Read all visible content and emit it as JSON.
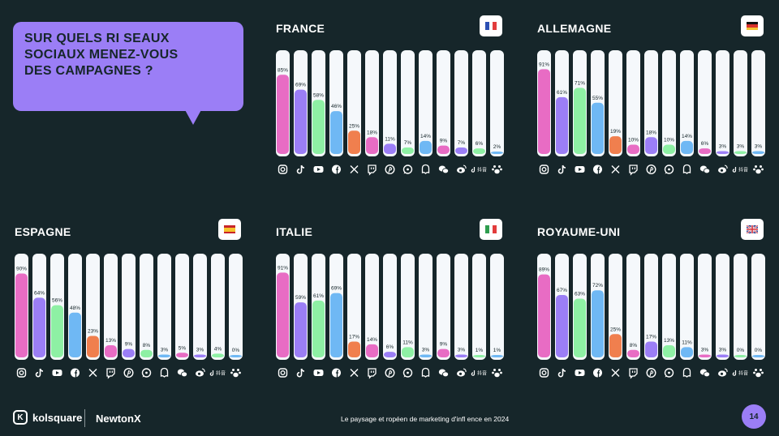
{
  "question": "SUR QUELS RI SEAUX\nSOCIAUX MENEZ-VOUS\nDES CAMPAGNES ?",
  "platforms": [
    "Instagram",
    "TikTok",
    "YouTube",
    "Facebook",
    "X",
    "Twitch",
    "Pinterest",
    "WhatsApp",
    "Snapchat",
    "WeChat",
    "Weibo",
    "Douyin",
    "Xiaohongshu"
  ],
  "platform_icons": [
    "instagram-icon",
    "tiktok-icon",
    "youtube-icon",
    "facebook-icon",
    "x-icon",
    "twitch-icon",
    "pinterest-icon",
    "whatsapp-icon",
    "snapchat-icon",
    "wechat-icon",
    "weibo-icon",
    "douyin-icon",
    "xiaohongshu-icon"
  ],
  "douyin_label": "抖音",
  "colors": [
    "#e86cc4",
    "#9b7ef6",
    "#8ef0a4",
    "#6fb8f4",
    "#f07f4e",
    "#e86cc4",
    "#9b7ef6",
    "#8ef0a4",
    "#6fb8f4",
    "#e86cc4",
    "#9b7ef6",
    "#8ef0a4",
    "#6fb8f4"
  ],
  "chart_data": [
    {
      "type": "bar",
      "title": "FRANCE",
      "flag": "france",
      "values": [
        85,
        69,
        58,
        46,
        25,
        18,
        11,
        7,
        14,
        9,
        7,
        6,
        2
      ],
      "labels": [
        "85%",
        "69%",
        "58%",
        "46%",
        "25%",
        "18%",
        "11%",
        "7%",
        "14%",
        "9%",
        "7%",
        "6%",
        "2%"
      ],
      "ylim": [
        0,
        100
      ]
    },
    {
      "type": "bar",
      "title": "ALLEMAGNE",
      "flag": "germany",
      "values": [
        91,
        61,
        71,
        55,
        19,
        10,
        18,
        10,
        14,
        6,
        3,
        3,
        3
      ],
      "labels": [
        "91%",
        "61%",
        "71%",
        "55%",
        "19%",
        "10%",
        "18%",
        "10%",
        "14%",
        "6%",
        "3%",
        "3%",
        "3%"
      ],
      "ylim": [
        0,
        100
      ]
    },
    {
      "type": "bar",
      "title": "ESPAGNE",
      "flag": "spain",
      "values": [
        90,
        64,
        56,
        48,
        23,
        13,
        9,
        8,
        3,
        5,
        3,
        4,
        0
      ],
      "labels": [
        "90%",
        "64%",
        "56%",
        "48%",
        "23%",
        "13%",
        "9%",
        "8%",
        "3%",
        "5%",
        "3%",
        "4%",
        "0%"
      ],
      "ylim": [
        0,
        100
      ]
    },
    {
      "type": "bar",
      "title": "ITALIE",
      "flag": "italy",
      "values": [
        91,
        59,
        61,
        69,
        17,
        14,
        6,
        11,
        3,
        9,
        3,
        1,
        1
      ],
      "labels": [
        "91%",
        "59%",
        "61%",
        "69%",
        "17%",
        "14%",
        "6%",
        "11%",
        "3%",
        "9%",
        "3%",
        "1%",
        "1%"
      ],
      "ylim": [
        0,
        100
      ]
    },
    {
      "type": "bar",
      "title": "ROYAUME-UNI",
      "flag": "uk",
      "values": [
        89,
        67,
        63,
        72,
        25,
        8,
        17,
        13,
        11,
        3,
        3,
        0,
        0
      ],
      "labels": [
        "89%",
        "67%",
        "63%",
        "72%",
        "25%",
        "8%",
        "17%",
        "13%",
        "11%",
        "3%",
        "3%",
        "0%",
        "0%"
      ],
      "ylim": [
        0,
        100
      ]
    }
  ],
  "footer": {
    "brand1": "kolsquare",
    "brand1_mark": "K",
    "brand2": "NewtonX",
    "caption": "Le paysage et ropéen de marketing d'infl ence en 2024",
    "page": "14"
  }
}
